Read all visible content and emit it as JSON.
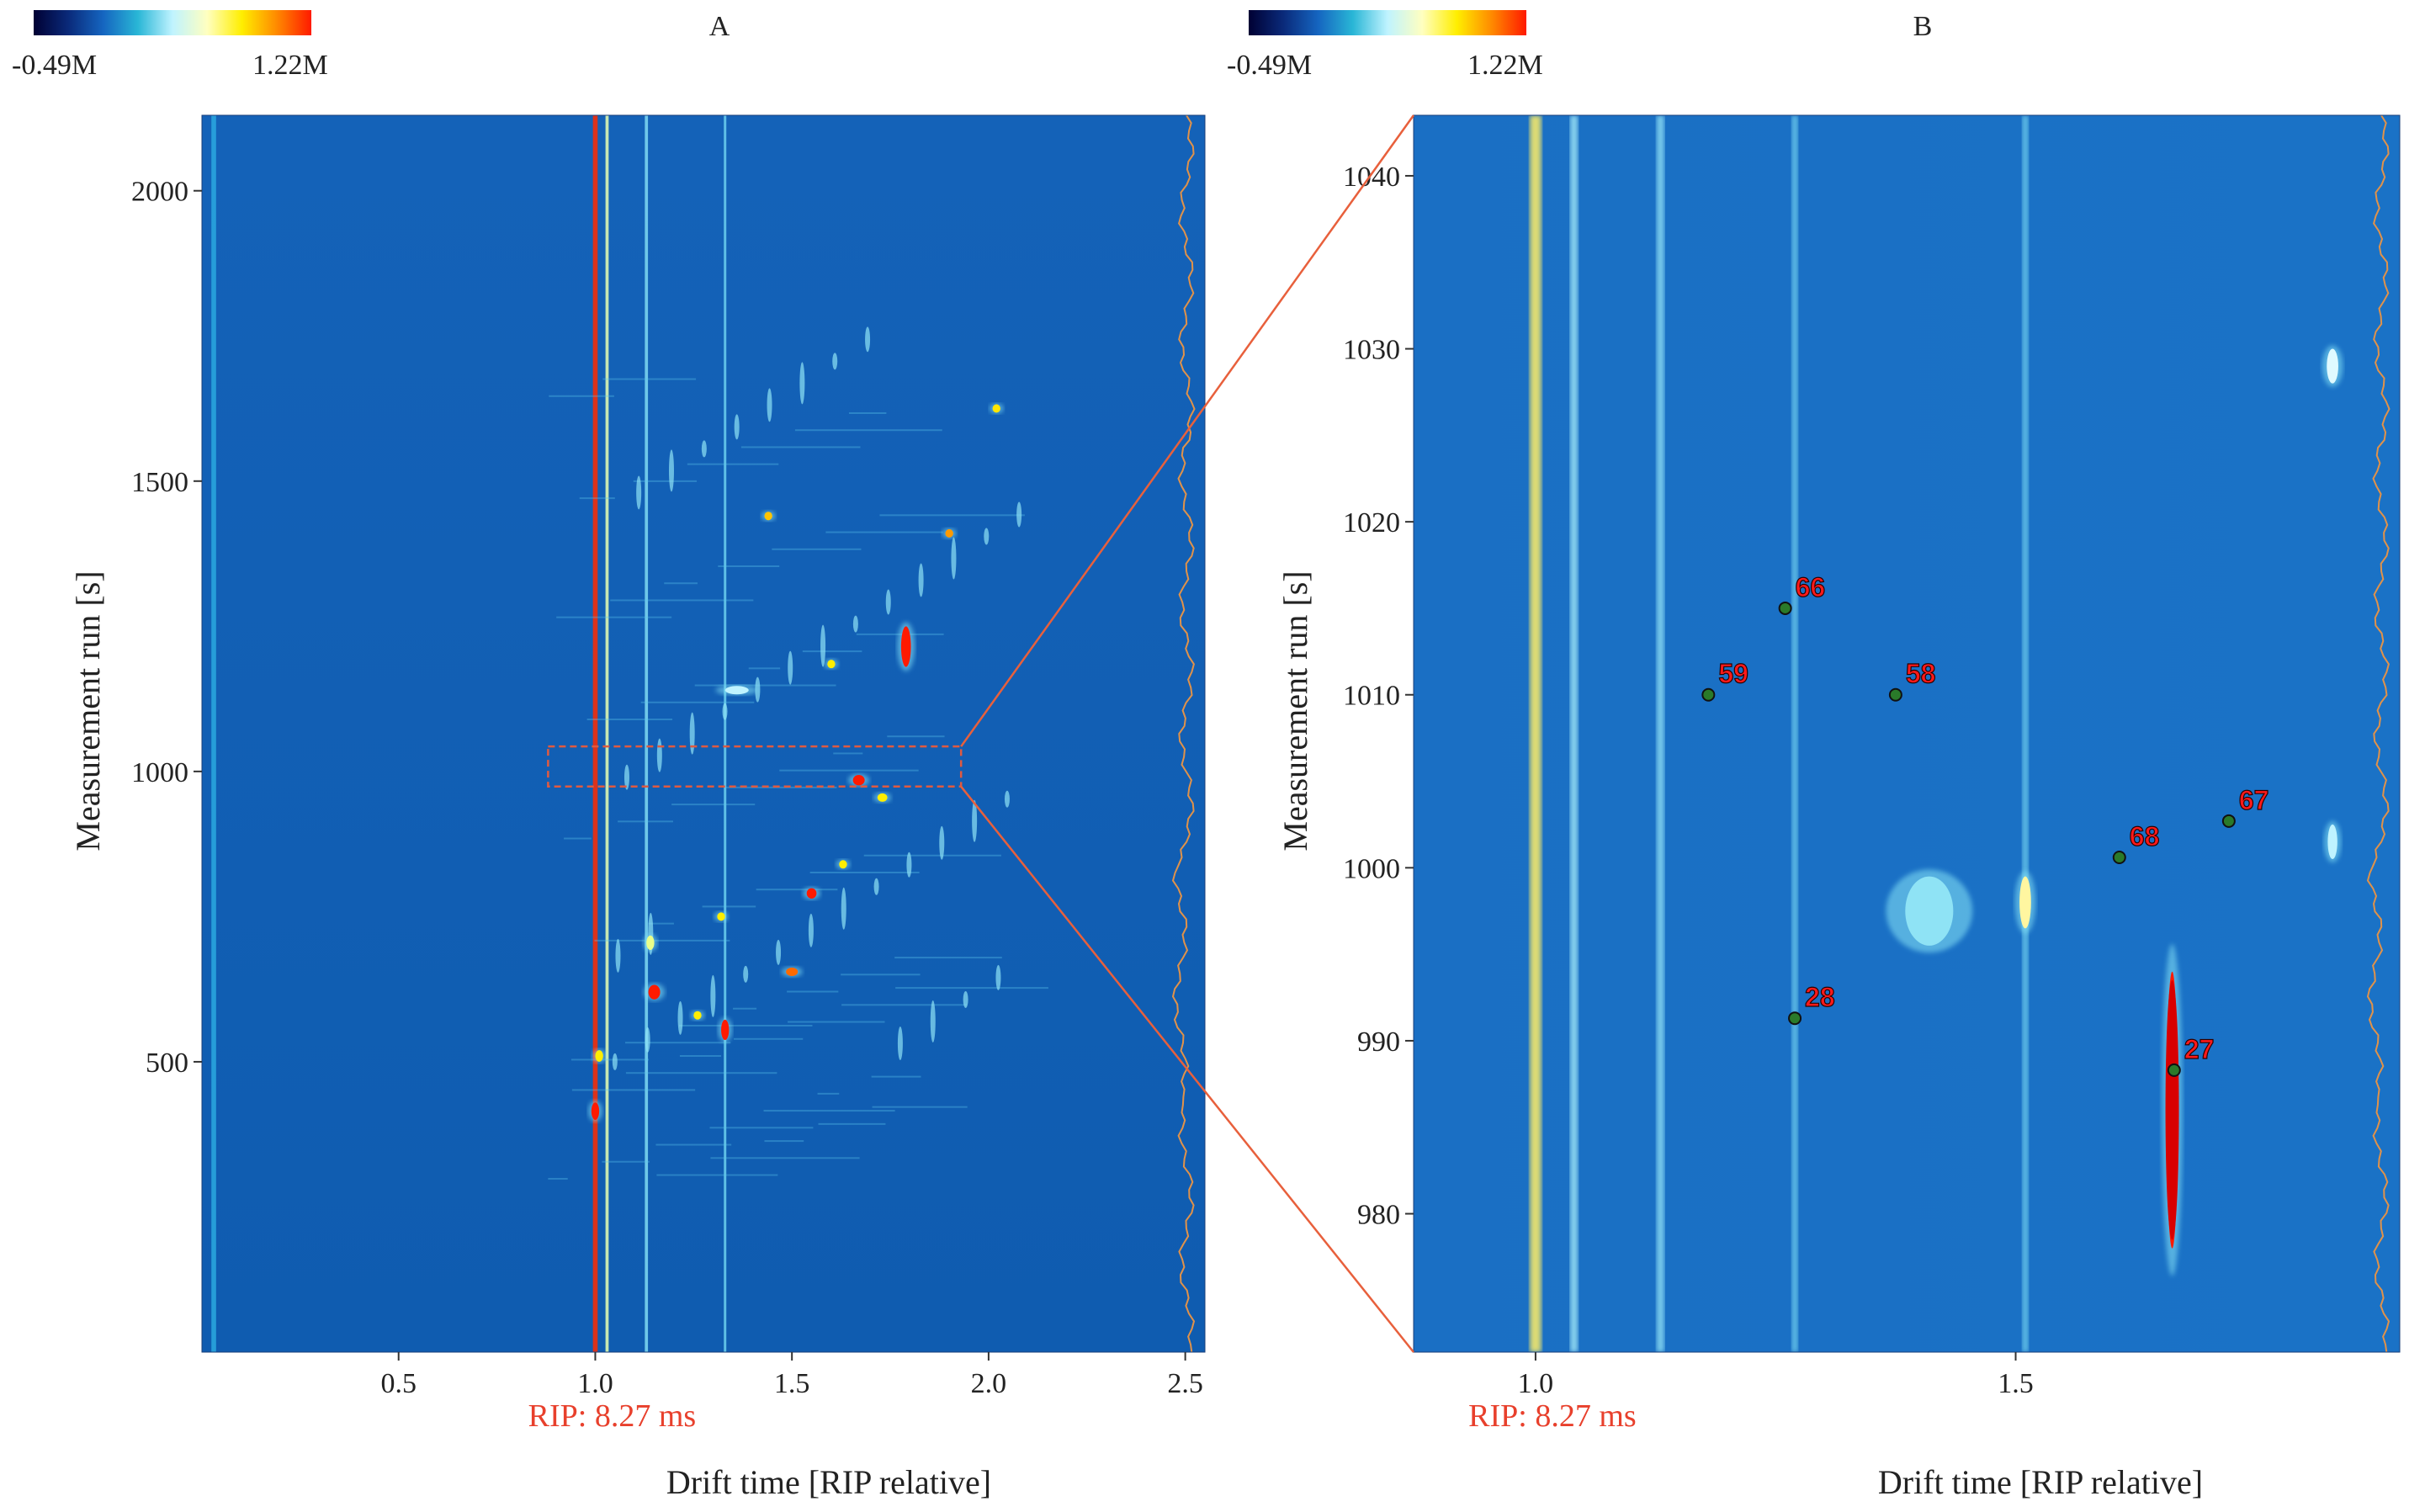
{
  "colorbar": {
    "min_label": "-0.49M",
    "max_label": "1.22M",
    "colors": [
      "#000033",
      "#0a2a7a",
      "#1565c0",
      "#29b6d6",
      "#bff3ff",
      "#ffffc0",
      "#ffee00",
      "#ff8a00",
      "#ff1a00"
    ]
  },
  "chart_data": [
    {
      "type": "heatmap",
      "panel_label": "A",
      "title": "",
      "xlabel": "Drift time [RIP relative]",
      "ylabel": "Measurement run [s]",
      "xlim": [
        0.0,
        2.55
      ],
      "ylim": [
        0,
        2130
      ],
      "x_ticks": [
        0.5,
        1.0,
        1.5,
        2.0,
        2.5
      ],
      "x_tick_labels": [
        "0.5",
        "1.0",
        "1.5",
        "2.0",
        "2.5"
      ],
      "y_ticks": [
        500,
        1000,
        1500,
        2000
      ],
      "y_tick_labels": [
        "500",
        "1000",
        "1500",
        "2000"
      ],
      "rip_label": "RIP: 8.27 ms",
      "rip_position": 1.0,
      "zoom_region": {
        "x": [
          0.88,
          1.93
        ],
        "y": [
          974,
          1043
        ]
      },
      "vertical_lines": [
        {
          "x": 0.03,
          "color": "#2aa8df",
          "width": 0.012
        },
        {
          "x": 1.0,
          "color": "#ff2a00",
          "width": 0.012
        },
        {
          "x": 1.03,
          "color": "#e8ffb0",
          "width": 0.008
        },
        {
          "x": 1.13,
          "color": "#7fd9f2",
          "width": 0.008
        },
        {
          "x": 1.33,
          "color": "#6cd0ef",
          "width": 0.006
        }
      ],
      "peaks": [
        {
          "x": 1.79,
          "y": 1215,
          "h": 70,
          "w": 0.025,
          "color": "#ff1a00"
        },
        {
          "x": 1.67,
          "y": 985,
          "h": 18,
          "w": 0.03,
          "color": "#ff1a00"
        },
        {
          "x": 1.55,
          "y": 790,
          "h": 18,
          "w": 0.025,
          "color": "#ff1a00"
        },
        {
          "x": 1.15,
          "y": 620,
          "h": 25,
          "w": 0.03,
          "color": "#ff1a00"
        },
        {
          "x": 1.33,
          "y": 555,
          "h": 35,
          "w": 0.02,
          "color": "#ff1a00"
        },
        {
          "x": 2.02,
          "y": 1625,
          "h": 12,
          "w": 0.02,
          "color": "#ffe600"
        },
        {
          "x": 1.9,
          "y": 1410,
          "h": 12,
          "w": 0.02,
          "color": "#ff9a00"
        },
        {
          "x": 1.73,
          "y": 955,
          "h": 10,
          "w": 0.025,
          "color": "#ffee00"
        },
        {
          "x": 1.5,
          "y": 655,
          "h": 8,
          "w": 0.03,
          "color": "#ff6a00"
        },
        {
          "x": 1.63,
          "y": 840,
          "h": 8,
          "w": 0.02,
          "color": "#ffee00"
        },
        {
          "x": 1.32,
          "y": 750,
          "h": 10,
          "w": 0.02,
          "color": "#ffee00"
        },
        {
          "x": 1.44,
          "y": 1440,
          "h": 8,
          "w": 0.02,
          "color": "#ffc400"
        },
        {
          "x": 1.6,
          "y": 1185,
          "h": 10,
          "w": 0.02,
          "color": "#ffee00"
        },
        {
          "x": 1.26,
          "y": 580,
          "h": 8,
          "w": 0.02,
          "color": "#ffee00"
        },
        {
          "x": 1.14,
          "y": 705,
          "h": 25,
          "w": 0.02,
          "color": "#eaff8a"
        },
        {
          "x": 1.36,
          "y": 1140,
          "h": 10,
          "w": 0.06,
          "color": "#bff3ff"
        },
        {
          "x": 1.01,
          "y": 510,
          "h": 20,
          "w": 0.02,
          "color": "#ffee00"
        },
        {
          "x": 1.0,
          "y": 415,
          "h": 30,
          "w": 0.02,
          "color": "#ff1a00"
        }
      ]
    },
    {
      "type": "heatmap",
      "panel_label": "B",
      "title": "",
      "xlabel": "Drift time [RIP relative]",
      "ylabel": "Measurement run [s]",
      "xlim": [
        0.873,
        1.9
      ],
      "ylim": [
        972,
        1043.5
      ],
      "x_ticks": [
        1.0,
        1.5
      ],
      "x_tick_labels": [
        "1.0",
        "1.5"
      ],
      "y_ticks": [
        980,
        990,
        1000,
        1010,
        1020,
        1030,
        1040
      ],
      "y_tick_labels": [
        "980",
        "990",
        "1000",
        "1010",
        "1020",
        "1030",
        "1040"
      ],
      "rip_label": "RIP: 8.27 ms",
      "rip_position": 1.0,
      "vertical_lines": [
        {
          "x": 1.0,
          "color": "#ffee66",
          "width": 0.012
        },
        {
          "x": 1.04,
          "color": "#9fe6f7",
          "width": 0.008
        },
        {
          "x": 1.13,
          "color": "#8adcf3",
          "width": 0.008
        },
        {
          "x": 1.27,
          "color": "#6fcfee",
          "width": 0.006
        },
        {
          "x": 1.51,
          "color": "#6fcfee",
          "width": 0.006
        }
      ],
      "peaks": [
        {
          "x": 1.663,
          "y": 986,
          "h": 16,
          "w": 0.012,
          "color": "#ff1a00"
        },
        {
          "x": 1.51,
          "y": 998,
          "h": 3,
          "w": 0.012,
          "color": "#fff6a0"
        },
        {
          "x": 1.83,
          "y": 1029,
          "h": 2,
          "w": 0.012,
          "color": "#dffaff"
        },
        {
          "x": 1.83,
          "y": 1001.5,
          "h": 2,
          "w": 0.01,
          "color": "#bff3ff"
        },
        {
          "x": 1.41,
          "y": 997.5,
          "h": 4,
          "w": 0.05,
          "color": "#8fe3f5"
        }
      ],
      "markers": [
        {
          "id": "66",
          "x": 1.26,
          "y": 1015
        },
        {
          "id": "59",
          "x": 1.18,
          "y": 1010
        },
        {
          "id": "58",
          "x": 1.375,
          "y": 1010
        },
        {
          "id": "67",
          "x": 1.722,
          "y": 1002.7
        },
        {
          "id": "68",
          "x": 1.608,
          "y": 1000.6
        },
        {
          "id": "28",
          "x": 1.27,
          "y": 991.3
        },
        {
          "id": "27",
          "x": 1.665,
          "y": 988.3
        }
      ]
    }
  ]
}
